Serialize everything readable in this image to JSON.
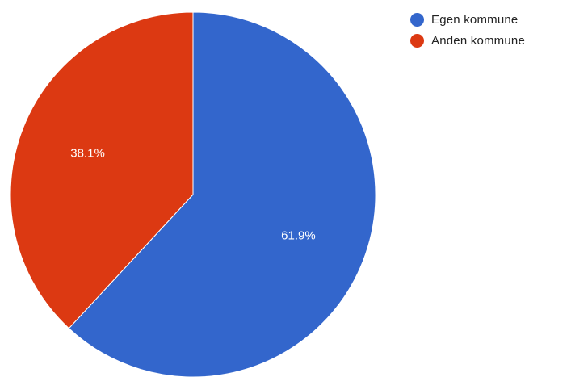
{
  "chart_data": {
    "type": "pie",
    "title": "",
    "start_angle_deg": 0,
    "direction": "clockwise",
    "legend_position": "top-right",
    "slices": [
      {
        "label": "Egen kommune",
        "value": 61.9,
        "value_label": "61.9%",
        "color": "#3366cc"
      },
      {
        "label": "Anden kommune",
        "value": 38.1,
        "value_label": "38.1%",
        "color": "#dc3912"
      }
    ]
  }
}
